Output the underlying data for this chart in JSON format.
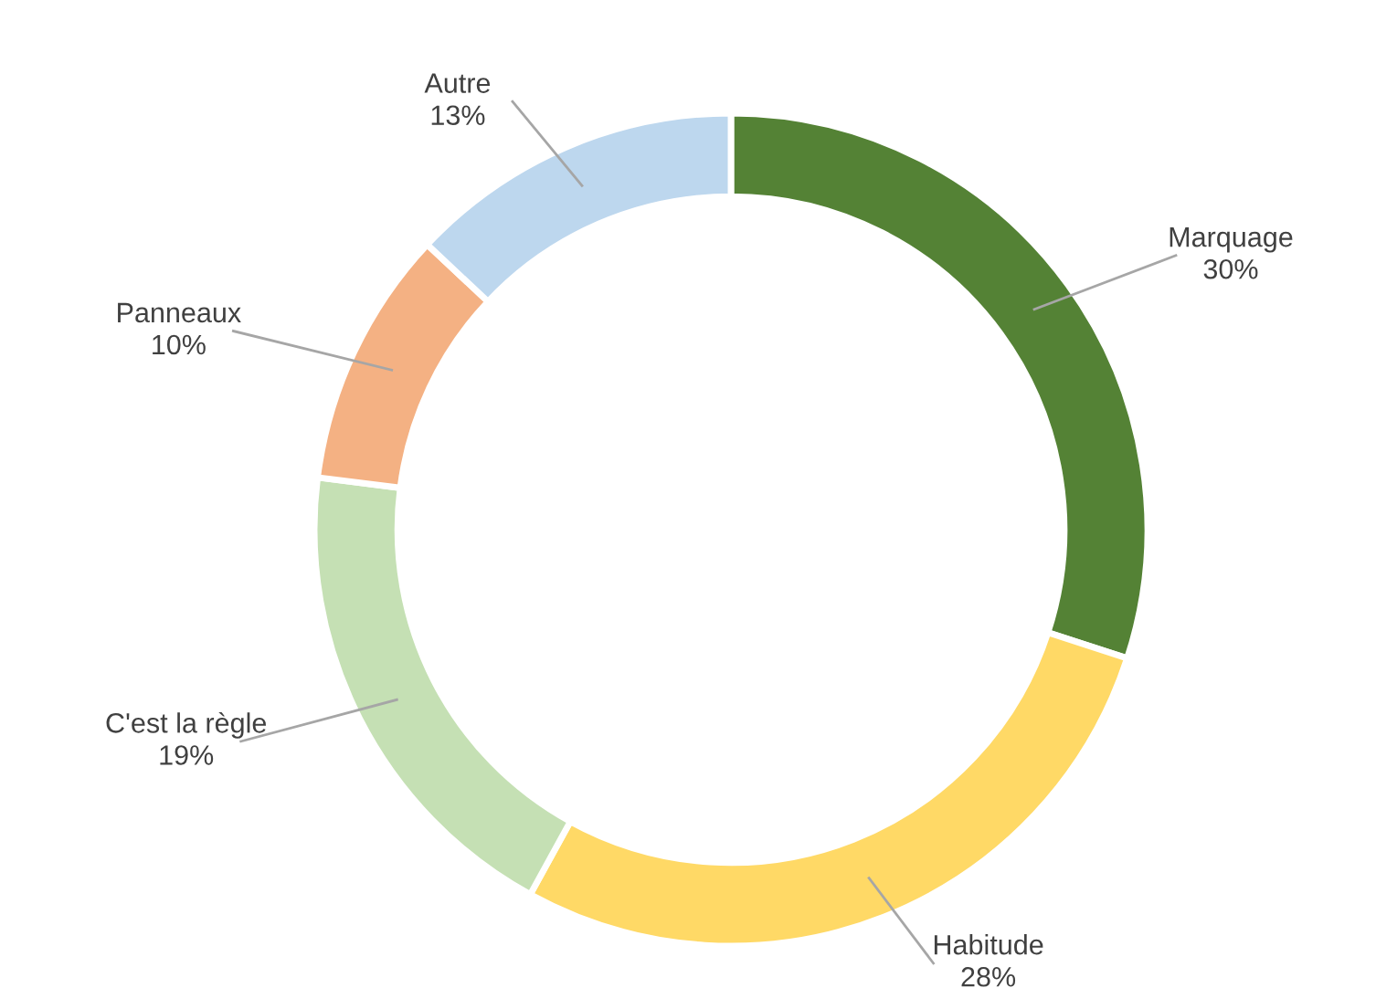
{
  "chart_data": {
    "type": "donut",
    "categories": [
      "Marquage",
      "Habitude",
      "C'est la règle",
      "Panneaux",
      "Autre"
    ],
    "values": [
      30,
      28,
      19,
      10,
      13
    ],
    "colors": [
      "#548235",
      "#ffd966",
      "#c5e0b4",
      "#f4b183",
      "#bdd7ee"
    ],
    "value_labels": [
      "30%",
      "28%",
      "19%",
      "10%",
      "13%"
    ],
    "legend": false
  }
}
